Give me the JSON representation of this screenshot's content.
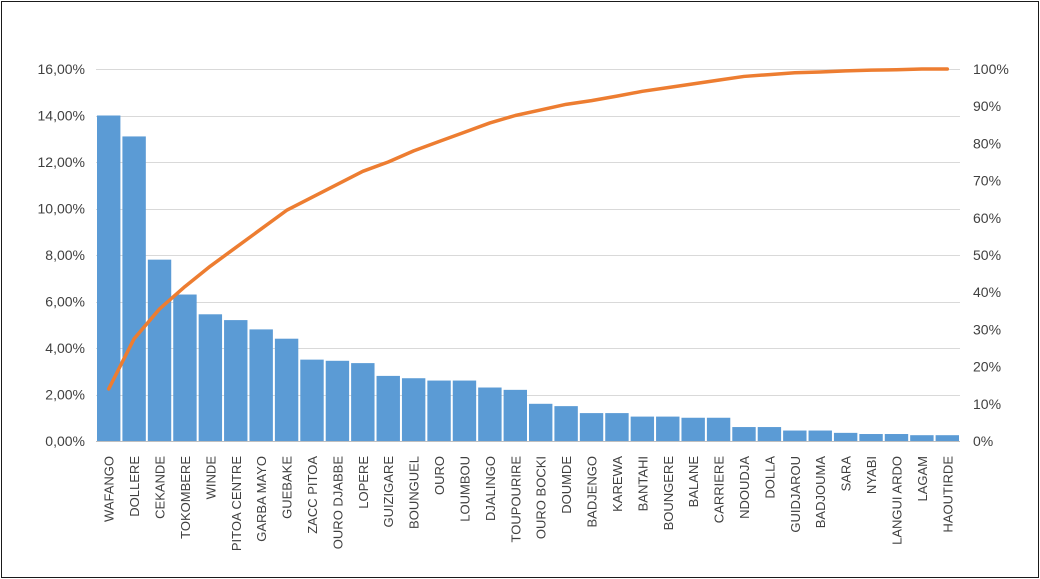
{
  "chart_data": {
    "type": "bar",
    "title": "",
    "xlabel": "",
    "ylabel": "",
    "categories": [
      "WAFANGO",
      "DOLLERE",
      "CEKANDE",
      "TOKOMBERE",
      "WINDE",
      "PITOA CENTRE",
      "GARBA MAYO",
      "GUEBAKE",
      "ZACC PITOA",
      "OURO DJABBE",
      "LOPERE",
      "GUIZIGARE",
      "BOUNGUEL",
      "OURO",
      "LOUMBOU",
      "DJALINGO",
      "TOUPOURIRE",
      "OURO BOCKI",
      "DOUMDE",
      "BADJENGO",
      "KAREWA",
      "BANTAHI",
      "BOUNGERE",
      "BALANE",
      "CARRIERE",
      "NDOUDJA",
      "DOLLA",
      "GUIDJAROU",
      "BADJOUMA",
      "SARA",
      "NYABI",
      "LANGUI ARDO",
      "LAGAM",
      "HAOUTIRDE"
    ],
    "series": [
      {
        "type": "bar",
        "axis": "left",
        "color": "#5b9bd5",
        "values": [
          14.0,
          13.1,
          7.8,
          6.3,
          5.45,
          5.2,
          4.8,
          4.4,
          3.5,
          3.45,
          3.35,
          2.8,
          2.7,
          2.6,
          2.6,
          2.3,
          2.2,
          1.6,
          1.5,
          1.2,
          1.2,
          1.05,
          1.05,
          1.0,
          1.0,
          0.6,
          0.6,
          0.45,
          0.45,
          0.35,
          0.3,
          0.3,
          0.25,
          0.25
        ]
      },
      {
        "type": "line",
        "axis": "right",
        "color": "#ed7d31",
        "values": [
          14,
          27.5,
          35.5,
          41.5,
          47,
          52,
          57,
          62,
          65.5,
          69,
          72.5,
          75,
          78,
          80.5,
          83,
          85.5,
          87.5,
          89,
          90.5,
          91.5,
          92.7,
          94,
          95,
          96,
          97,
          98,
          98.5,
          99,
          99.2,
          99.5,
          99.7,
          99.8,
          100,
          100
        ]
      }
    ],
    "y_left": {
      "min": 0,
      "max": 16,
      "ticks": [
        "0,00%",
        "2,00%",
        "4,00%",
        "6,00%",
        "8,00%",
        "10,00%",
        "12,00%",
        "14,00%",
        "16,00%"
      ]
    },
    "y_right": {
      "min": 0,
      "max": 100,
      "ticks": [
        "0%",
        "10%",
        "20%",
        "30%",
        "40%",
        "50%",
        "60%",
        "70%",
        "80%",
        "90%",
        "100%"
      ]
    },
    "grid": true,
    "legend": "none"
  }
}
